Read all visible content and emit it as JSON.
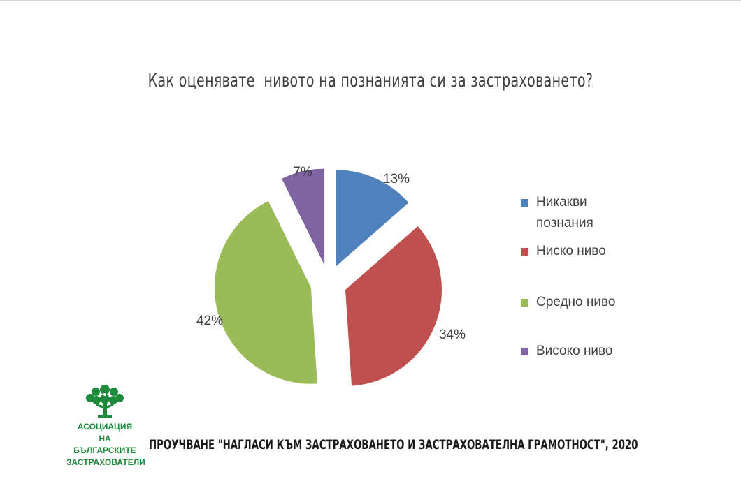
{
  "chart_data": {
    "type": "pie",
    "title": "Как оценявате  нивото на познанията си за застраховането?",
    "categories": [
      "Никакви познания",
      "Ниско ниво",
      "Средно ниво",
      "Високо ниво"
    ],
    "values": [
      13,
      34,
      42,
      7
    ],
    "labels": [
      "13%",
      "34%",
      "42%",
      "7%"
    ],
    "colors": [
      "#4f81bd",
      "#c0504d",
      "#9bbb59",
      "#8064a2"
    ],
    "exploded": true,
    "legend_position": "right"
  },
  "logo": {
    "icon": "tree-icon",
    "line1": "АСОЦИАЦИЯ",
    "line2": "НА БЪЛГАРСКИТЕ",
    "line3": "ЗАСТРАХОВАТЕЛИ",
    "color": "#1e8a3b"
  },
  "footer": {
    "text": "ПРОУЧВАНЕ \"НАГЛАСИ КЪМ ЗАСТРАХОВАНЕТО И ЗАСТРАХОВАТЕЛНА ГРАМОТНОСТ\", 2020"
  }
}
